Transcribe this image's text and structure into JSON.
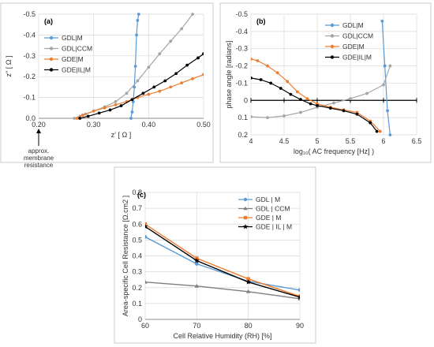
{
  "chart_data": [
    {
      "panel_label": "(a)",
      "type": "scatter",
      "xlabel": "z' [ Ω ]",
      "ylabel": "z\" [ Ω ]",
      "xlim": [
        0.2,
        0.5
      ],
      "ylim": [
        0,
        -0.5
      ],
      "y_inverted": true,
      "xticks": [
        "0.20",
        "0.30",
        "0.40",
        "0.50"
      ],
      "yticks": [
        "0.0",
        "-0.1",
        "-0.2",
        "-0.3",
        "-0.4",
        "-0.5"
      ],
      "grid": true,
      "legend_position": "top-left",
      "annotation": [
        "approx.",
        "membrane",
        "resistance"
      ],
      "series": [
        {
          "name": "GDL|M",
          "color": "#5b9bd5",
          "x": [
            0.368,
            0.37,
            0.372,
            0.374,
            0.376,
            0.378,
            0.38,
            0.382
          ],
          "y": [
            0.0,
            -0.03,
            -0.08,
            -0.15,
            -0.25,
            -0.4,
            -0.47,
            -0.5
          ]
        },
        {
          "name": "GDL|CCM",
          "color": "#a5a5a5",
          "x": [
            0.265,
            0.275,
            0.285,
            0.3,
            0.32,
            0.34,
            0.36,
            0.38,
            0.4,
            0.42,
            0.44,
            0.46,
            0.48
          ],
          "y": [
            0.0,
            -0.01,
            -0.02,
            -0.035,
            -0.055,
            -0.08,
            -0.12,
            -0.18,
            -0.245,
            -0.31,
            -0.37,
            -0.43,
            -0.5
          ]
        },
        {
          "name": "GDE|M",
          "color": "#ed7d31",
          "x": [
            0.27,
            0.28,
            0.3,
            0.32,
            0.34,
            0.36,
            0.38,
            0.4,
            0.42,
            0.44,
            0.46,
            0.48,
            0.5
          ],
          "y": [
            0.0,
            -0.015,
            -0.035,
            -0.05,
            -0.065,
            -0.08,
            -0.1,
            -0.115,
            -0.13,
            -0.15,
            -0.17,
            -0.19,
            -0.21
          ]
        },
        {
          "name": "GDE|IL|M",
          "color": "#000000",
          "x": [
            0.275,
            0.29,
            0.31,
            0.33,
            0.35,
            0.37,
            0.39,
            0.41,
            0.43,
            0.45,
            0.47,
            0.49,
            0.5
          ],
          "y": [
            0.0,
            -0.01,
            -0.025,
            -0.04,
            -0.06,
            -0.09,
            -0.12,
            -0.15,
            -0.18,
            -0.215,
            -0.255,
            -0.29,
            -0.31
          ]
        }
      ]
    },
    {
      "panel_label": "(b)",
      "type": "line",
      "xlabel": "log₁₀( AC frequency [Hz] )",
      "ylabel": "phase angle [radians]",
      "xlim": [
        4,
        6.5
      ],
      "ylim": [
        0.2,
        -0.5
      ],
      "y_inverted": true,
      "xticks": [
        "4",
        "4.5",
        "5",
        "5.5",
        "6",
        "6.5"
      ],
      "yticks": [
        "-0.5",
        "-0.4",
        "-0.3",
        "-0.2",
        "-0.1",
        "0",
        "0.1",
        "0.2"
      ],
      "grid": true,
      "legend_position": "top-right",
      "series": [
        {
          "name": "GDL|M",
          "color": "#5b9bd5",
          "x": [
            5.98,
            6.02,
            6.06,
            6.1
          ],
          "y": [
            -0.46,
            -0.2,
            0.06,
            0.2
          ]
        },
        {
          "name": "GDL|CCM",
          "color": "#a5a5a5",
          "x": [
            4.0,
            4.25,
            4.5,
            4.75,
            5.0,
            5.25,
            5.5,
            5.75,
            6.0,
            6.1
          ],
          "y": [
            0.095,
            0.1,
            0.09,
            0.07,
            0.04,
            0.015,
            -0.01,
            -0.04,
            -0.09,
            -0.2
          ]
        },
        {
          "name": "GDE|M",
          "color": "#ed7d31",
          "x": [
            4.0,
            4.1,
            4.25,
            4.4,
            4.55,
            4.7,
            4.85,
            5.0,
            5.2,
            5.4,
            5.6,
            5.8,
            5.95
          ],
          "y": [
            -0.24,
            -0.23,
            -0.2,
            -0.16,
            -0.11,
            -0.05,
            -0.01,
            0.02,
            0.04,
            0.055,
            0.07,
            0.12,
            0.18
          ]
        },
        {
          "name": "GDE|IL|M",
          "color": "#000000",
          "x": [
            4.0,
            4.15,
            4.3,
            4.45,
            4.6,
            4.75,
            4.9,
            5.0,
            5.2,
            5.4,
            5.6,
            5.8,
            5.9
          ],
          "y": [
            -0.13,
            -0.12,
            -0.1,
            -0.07,
            -0.035,
            -0.005,
            0.02,
            0.03,
            0.045,
            0.06,
            0.08,
            0.13,
            0.18
          ]
        }
      ]
    },
    {
      "panel_label": "(c)",
      "type": "line",
      "xlabel": "Cell Relative Humidity (RH) [%]",
      "ylabel": "Area-specific Cell Resistance [Ω.cm2 ]",
      "xlim": [
        60,
        90
      ],
      "ylim": [
        0,
        0.8
      ],
      "xticks": [
        "60",
        "70",
        "80",
        "90"
      ],
      "yticks": [
        "0",
        "0.1",
        "0.2",
        "0.3",
        "0.4",
        "0.5",
        "0.6",
        "0.7",
        "0.8"
      ],
      "grid": true,
      "legend_position": "top-right",
      "categories": [
        60,
        70,
        80,
        90
      ],
      "series": [
        {
          "name": "GDL | M",
          "color": "#5b9bd5",
          "marker": "circle",
          "values": [
            0.52,
            0.35,
            0.24,
            0.185
          ]
        },
        {
          "name": "GDL | CCM",
          "color": "#7f7f7f",
          "marker": "triangle",
          "values": [
            0.235,
            0.21,
            0.175,
            0.13
          ]
        },
        {
          "name": "GDE | M",
          "color": "#ed7d31",
          "marker": "square",
          "values": [
            0.6,
            0.385,
            0.255,
            0.145
          ]
        },
        {
          "name": "GDE | IL | M",
          "color": "#000000",
          "marker": "star",
          "values": [
            0.585,
            0.37,
            0.235,
            0.14
          ]
        }
      ]
    }
  ]
}
